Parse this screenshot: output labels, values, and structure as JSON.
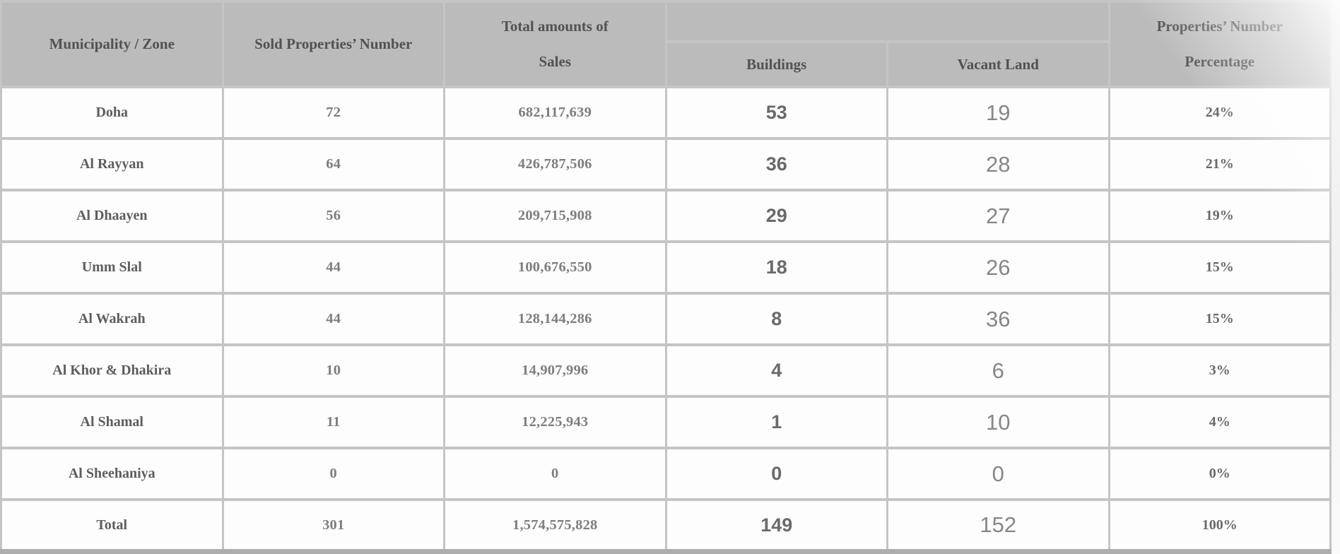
{
  "header": {
    "municipality_zone": "Municipality / Zone",
    "sold_properties_number": "Sold Properties’ Number",
    "total_amounts_of_sales": "Total amounts of Sales",
    "property_type_group": "",
    "buildings": "Buildings",
    "vacant_land": "Vacant Land",
    "properties_number_percentage": "Properties’ Number Percentage"
  },
  "rows": [
    {
      "name": "Doha",
      "sold": "72",
      "sales": "682,117,639",
      "buildings": "53",
      "vacant": "19",
      "pct": "24%"
    },
    {
      "name": "Al Rayyan",
      "sold": "64",
      "sales": "426,787,506",
      "buildings": "36",
      "vacant": "28",
      "pct": "21%"
    },
    {
      "name": "Al Dhaayen",
      "sold": "56",
      "sales": "209,715,908",
      "buildings": "29",
      "vacant": "27",
      "pct": "19%"
    },
    {
      "name": "Umm Slal",
      "sold": "44",
      "sales": "100,676,550",
      "buildings": "18",
      "vacant": "26",
      "pct": "15%"
    },
    {
      "name": "Al Wakrah",
      "sold": "44",
      "sales": "128,144,286",
      "buildings": "8",
      "vacant": "36",
      "pct": "15%"
    },
    {
      "name": "Al Khor & Dhakira",
      "sold": "10",
      "sales": "14,907,996",
      "buildings": "4",
      "vacant": "6",
      "pct": "3%"
    },
    {
      "name": "Al Shamal",
      "sold": "11",
      "sales": "12,225,943",
      "buildings": "1",
      "vacant": "10",
      "pct": "4%"
    },
    {
      "name": "Al Sheehaniya",
      "sold": "0",
      "sales": "0",
      "buildings": "0",
      "vacant": "0",
      "pct": "0%"
    }
  ],
  "total": {
    "name": "Total",
    "sold": "301",
    "sales": "1,574,575,828",
    "buildings": "149",
    "vacant": "152",
    "pct": "100%"
  },
  "colors": {
    "header_bg": "#bcbbbb",
    "header_text": "#525153",
    "cell_bg": "#fdfdfd",
    "border": "#c6c5c5",
    "bottom_bar": "#aeadad"
  }
}
